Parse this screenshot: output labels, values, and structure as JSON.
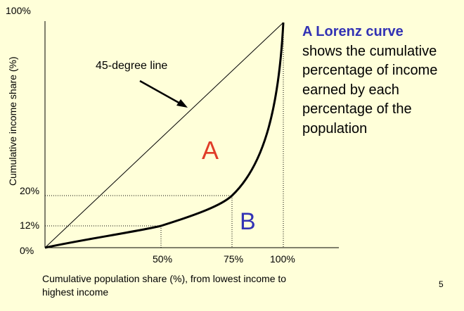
{
  "y_axis": {
    "label": "Cumulative income share (%)",
    "ticks": {
      "top": "100%",
      "t20": "20%",
      "t12": "12%",
      "t0": "0%"
    }
  },
  "x_axis": {
    "label_line1": "Cumulative population share (%), from lowest income to",
    "label_line2": "highest income",
    "ticks": {
      "t50": "50%",
      "t75": "75%",
      "t100": "100%"
    }
  },
  "annotations": {
    "diagonal_label": "45-degree line",
    "region_a": "A",
    "region_b": "B"
  },
  "description": {
    "title": "A Lorenz curve",
    "line1": "shows the cumulative",
    "line2": "percentage of income",
    "line3": "earned by each",
    "line4": "percentage of the",
    "line5": "population"
  },
  "page_number": "5",
  "colors": {
    "background": "#ffffd9",
    "title": "#3232b4",
    "region_a": "#e03c28",
    "region_b": "#3232b4"
  },
  "chart_data": {
    "type": "line",
    "series": [
      {
        "x": [
          0,
          50,
          75,
          100
        ],
        "y": [
          0,
          12,
          20,
          100
        ]
      },
      {
        "x": [
          0,
          100
        ],
        "y": [
          0,
          100
        ]
      }
    ],
    "guides": [
      {
        "x": 50,
        "y": 12
      },
      {
        "x": 75,
        "y": 20
      },
      {
        "x": 100,
        "y": 100
      }
    ],
    "xlim": [
      0,
      100
    ],
    "ylim": [
      0,
      100
    ]
  }
}
